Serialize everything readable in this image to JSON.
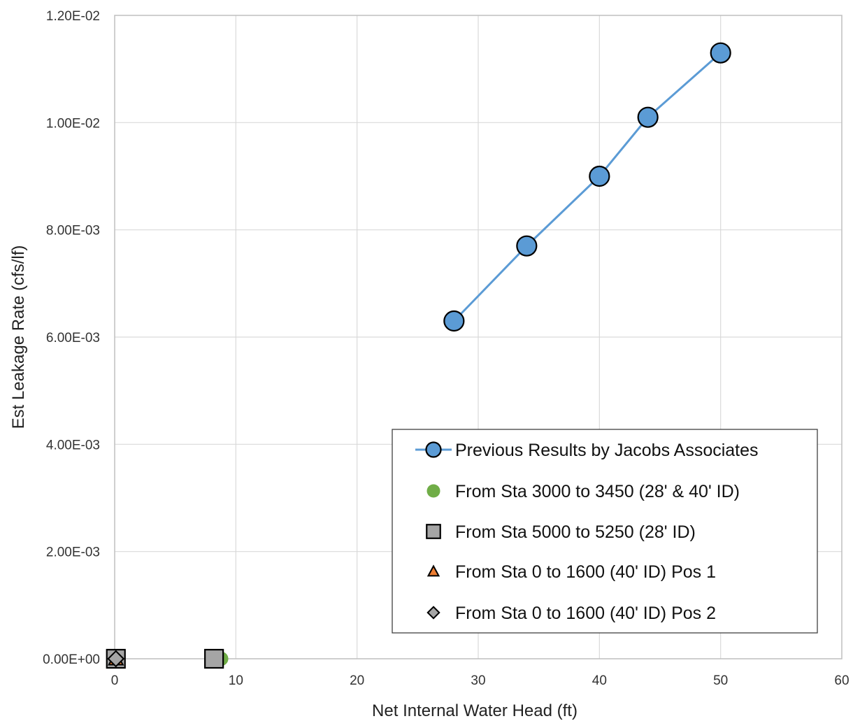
{
  "chart_data": {
    "type": "scatter",
    "xlabel": "Net Internal Water Head (ft)",
    "ylabel": "Est Leakage Rate (cfs/lf)",
    "xlim": [
      0,
      60
    ],
    "ylim": [
      0,
      0.012
    ],
    "x_ticks": [
      "0",
      "10",
      "20",
      "30",
      "40",
      "50",
      "60"
    ],
    "y_ticks": [
      "0.00E+00",
      "2.00E-03",
      "4.00E-03",
      "6.00E-03",
      "8.00E-03",
      "1.00E-02",
      "1.20E-02"
    ],
    "grid": true,
    "legend_position": "bottom-right",
    "series": [
      {
        "name": "Previous Results by Jacobs Associates",
        "marker": "circle",
        "line": true,
        "color": "#5b9bd5",
        "points": [
          [
            28,
            0.0063
          ],
          [
            34,
            0.0077
          ],
          [
            40,
            0.009
          ],
          [
            44,
            0.0101
          ],
          [
            50,
            0.0113
          ]
        ]
      },
      {
        "name": "From Sta 3000 to 3450 (28' & 40' ID)",
        "marker": "dot",
        "line": false,
        "color": "#70ad47",
        "points": [
          [
            8.8,
            0.0
          ]
        ]
      },
      {
        "name": "From Sta 5000 to 5250 (28' ID)",
        "marker": "square",
        "line": false,
        "color": "#a5a5a5",
        "points": [
          [
            0.1,
            0.0
          ],
          [
            8.2,
            0.0
          ]
        ]
      },
      {
        "name": "From Sta 0 to 1600 (40' ID) Pos 1",
        "marker": "triangle",
        "line": false,
        "color": "#ed7d31",
        "points": [
          [
            0.1,
            0.0
          ]
        ]
      },
      {
        "name": "From Sta 0 to 1600 (40' ID) Pos 2",
        "marker": "diamond",
        "line": false,
        "color": "#a5a5a5",
        "points": [
          [
            0.1,
            0.0
          ]
        ]
      }
    ]
  }
}
